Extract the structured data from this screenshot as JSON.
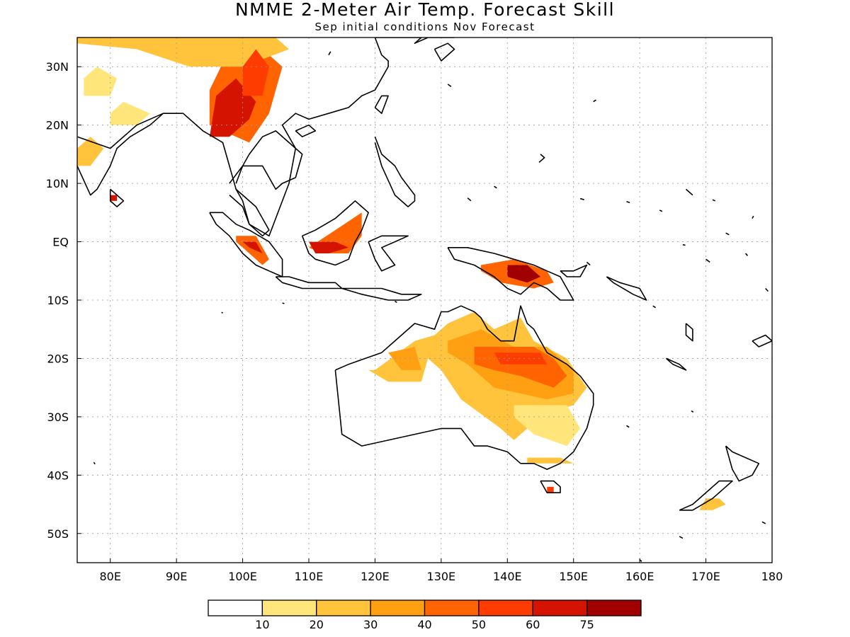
{
  "title": "NMME 2-Meter Air Temp. Forecast Skill",
  "subtitle": "Sep initial conditions  Nov Forecast",
  "lat_labels": [
    "30N",
    "20N",
    "10N",
    "EQ",
    "10S",
    "20S",
    "30S",
    "40S",
    "50S"
  ],
  "lon_labels": [
    "80E",
    "90E",
    "100E",
    "110E",
    "120E",
    "130E",
    "140E",
    "150E",
    "160E",
    "170E",
    "180"
  ],
  "map_extent": {
    "lon": [
      75,
      180
    ],
    "lat": [
      -55,
      35
    ]
  },
  "colorbar": {
    "bins": [
      {
        "color": "#ffffff"
      },
      {
        "color": "#ffe57a"
      },
      {
        "color": "#ffc33c"
      },
      {
        "color": "#ffa012"
      },
      {
        "color": "#ff6400"
      },
      {
        "color": "#ff3c00"
      },
      {
        "color": "#d41400"
      },
      {
        "color": "#a00000"
      }
    ],
    "labels": [
      "10",
      "20",
      "30",
      "40",
      "50",
      "60",
      "75"
    ]
  },
  "skill_regions": [
    {
      "name": "tibet-china",
      "lon": [
        95,
        101,
        104,
        106,
        101,
        98,
        95
      ],
      "lat": [
        20,
        17,
        22,
        30,
        35,
        33,
        26
      ],
      "level": 4
    },
    {
      "name": "china-west",
      "lon": [
        75,
        84,
        92,
        100,
        107,
        105,
        95,
        85,
        75
      ],
      "lat": [
        34,
        33,
        30,
        30,
        33,
        35,
        35,
        35,
        35
      ],
      "level": 2
    },
    {
      "name": "myanmar",
      "lon": [
        95,
        98,
        101,
        102,
        99,
        96
      ],
      "lat": [
        18,
        18,
        21,
        24,
        28,
        25
      ],
      "level": 6
    },
    {
      "name": "sichuan",
      "lon": [
        100,
        103,
        104,
        102,
        100
      ],
      "lat": [
        25,
        25,
        30,
        33,
        30
      ],
      "level": 5
    },
    {
      "name": "india-west",
      "lon": [
        75,
        77,
        79,
        77,
        75
      ],
      "lat": [
        13,
        13,
        16,
        18,
        16
      ],
      "level": 2
    },
    {
      "name": "india-nw",
      "lon": [
        76,
        80,
        81,
        78,
        76
      ],
      "lat": [
        25,
        25,
        28,
        30,
        28
      ],
      "level": 1
    },
    {
      "name": "india-c",
      "lon": [
        80,
        84,
        86,
        82,
        80
      ],
      "lat": [
        20,
        20,
        22,
        24,
        22
      ],
      "level": 1
    },
    {
      "name": "srilanka",
      "lon": [
        80,
        81,
        81,
        80
      ],
      "lat": [
        7,
        7,
        8,
        8
      ],
      "level": 6
    },
    {
      "name": "sumatra",
      "lon": [
        99,
        102,
        104,
        103,
        100,
        99
      ],
      "lat": [
        1,
        1,
        -3,
        -4,
        -1,
        0
      ],
      "level": 4
    },
    {
      "name": "sumatra-core",
      "lon": [
        100,
        102,
        103,
        101
      ],
      "lat": [
        0,
        0,
        -2,
        -1
      ],
      "level": 6
    },
    {
      "name": "borneo",
      "lon": [
        110,
        114,
        118,
        118,
        116,
        112,
        110
      ],
      "lat": [
        -1,
        2,
        5,
        1,
        -2,
        -2,
        -1
      ],
      "level": 4
    },
    {
      "name": "borneo-core",
      "lon": [
        110,
        114,
        116,
        113,
        111
      ],
      "lat": [
        0,
        0,
        -1,
        -2,
        -2
      ],
      "level": 6
    },
    {
      "name": "newguinea",
      "lon": [
        136,
        141,
        146,
        147,
        144,
        139,
        136
      ],
      "lat": [
        -4,
        -3,
        -5,
        -7,
        -8,
        -7,
        -5
      ],
      "level": 4
    },
    {
      "name": "newguinea-core",
      "lon": [
        140,
        143,
        145,
        143,
        140
      ],
      "lat": [
        -4,
        -4,
        -6,
        -7,
        -6
      ],
      "level": 7
    },
    {
      "name": "aus-west",
      "lon": [
        120,
        126,
        129,
        127,
        122,
        119
      ],
      "lat": [
        -22,
        -17,
        -16,
        -24,
        -24,
        -22
      ],
      "level": 2
    },
    {
      "name": "aus-west-core",
      "lon": [
        122,
        126,
        127,
        124
      ],
      "lat": [
        -19,
        -18,
        -22,
        -22
      ],
      "level": 3
    },
    {
      "name": "aus-north",
      "lon": [
        128,
        131,
        135,
        138,
        142,
        144,
        149,
        152,
        150,
        147,
        144,
        141,
        139,
        133,
        130,
        128
      ],
      "lat": [
        -17,
        -14,
        -12,
        -15,
        -13,
        -17,
        -20,
        -25,
        -28,
        -29,
        -31,
        -34,
        -32,
        -27,
        -22,
        -20
      ],
      "level": 2
    },
    {
      "name": "aus-core",
      "lon": [
        131,
        136,
        141,
        146,
        150,
        150,
        146,
        142,
        138,
        134,
        131
      ],
      "lat": [
        -17,
        -15,
        -18,
        -18,
        -22,
        -26,
        -27,
        -26,
        -25,
        -21,
        -19
      ],
      "level": 3
    },
    {
      "name": "aus-band",
      "lon": [
        135,
        140,
        144,
        147,
        149,
        147,
        142,
        138,
        135
      ],
      "lat": [
        -18,
        -18,
        -18,
        -20,
        -23,
        -25,
        -23,
        -22,
        -21
      ],
      "level": 4
    },
    {
      "name": "aus-hot",
      "lon": [
        138,
        142,
        145,
        146,
        143,
        139
      ],
      "lat": [
        -19,
        -19,
        -19,
        -21,
        -21,
        -21
      ],
      "level": 5
    },
    {
      "name": "aus-se",
      "lon": [
        141,
        146,
        149,
        151,
        149,
        144,
        141
      ],
      "lat": [
        -28,
        -28,
        -28,
        -32,
        -35,
        -33,
        -30
      ],
      "level": 1
    },
    {
      "name": "aus-south",
      "lon": [
        143,
        148,
        150,
        147,
        143
      ],
      "lat": [
        -37,
        -37,
        -38,
        -38,
        -38
      ],
      "level": 2
    },
    {
      "name": "tasmania",
      "lon": [
        146,
        147,
        147,
        146
      ],
      "lat": [
        -42,
        -42,
        -43,
        -43
      ],
      "level": 5
    },
    {
      "name": "nz",
      "lon": [
        170,
        172,
        173,
        171,
        169
      ],
      "lat": [
        -44,
        -44,
        -45,
        -46,
        -46
      ],
      "level": 2
    }
  ],
  "coastlines": [
    {
      "name": "asia-mainland",
      "lon": [
        75,
        80,
        84,
        88,
        91,
        94,
        97,
        98,
        99,
        100,
        101,
        104,
        107,
        108,
        106,
        108,
        110,
        113,
        116,
        118,
        120,
        122,
        122,
        121,
        120,
        122,
        125,
        127,
        126,
        128,
        130,
        131,
        132
      ],
      "lat": [
        18,
        16,
        20,
        22,
        22,
        19,
        17,
        13,
        9,
        7,
        3,
        1,
        10,
        16,
        20,
        22,
        21,
        22,
        23,
        25,
        26,
        30,
        31,
        32,
        35,
        35,
        35,
        35,
        34,
        35,
        35,
        35,
        35
      ]
    },
    {
      "name": "india-south",
      "lon": [
        72,
        73,
        75,
        77,
        78,
        80,
        81,
        83,
        86,
        88
      ],
      "lat": [
        21,
        17,
        13,
        8,
        9,
        13,
        16,
        18,
        20,
        22
      ]
    },
    {
      "name": "srilanka",
      "lon": [
        80,
        81,
        82,
        81,
        80,
        80
      ],
      "lat": [
        9,
        8,
        7,
        6,
        7,
        9
      ]
    },
    {
      "name": "indochina",
      "lon": [
        98,
        100,
        103,
        105,
        106,
        108,
        109,
        107,
        105,
        103,
        101,
        100,
        99
      ],
      "lat": [
        10,
        13,
        13,
        9,
        10,
        11,
        15,
        17,
        19,
        18,
        15,
        13,
        10
      ]
    },
    {
      "name": "malay-peninsula",
      "lon": [
        98,
        100,
        101,
        103,
        104,
        103,
        102,
        100,
        99
      ],
      "lat": [
        8,
        6,
        3,
        1,
        2,
        4,
        6,
        8,
        9
      ]
    },
    {
      "name": "sumatra",
      "lon": [
        95,
        97,
        99,
        101,
        104,
        106,
        106,
        104,
        102,
        100,
        98,
        96,
        95
      ],
      "lat": [
        5,
        5,
        3,
        2,
        0,
        -3,
        -6,
        -5,
        -4,
        -2,
        1,
        3,
        5
      ]
    },
    {
      "name": "java",
      "lon": [
        105,
        107,
        110,
        114,
        115,
        112,
        109,
        106,
        105
      ],
      "lat": [
        -6,
        -6,
        -7,
        -7,
        -8,
        -8,
        -8,
        -7,
        -6
      ]
    },
    {
      "name": "lesser-sunda",
      "lon": [
        115,
        118,
        121,
        124,
        127,
        125,
        122,
        118,
        115
      ],
      "lat": [
        -8,
        -8,
        -8,
        -9,
        -9,
        -10,
        -10,
        -9,
        -8
      ]
    },
    {
      "name": "borneo",
      "lon": [
        109,
        111,
        114,
        116,
        117,
        119,
        118,
        117,
        116,
        114,
        111,
        110,
        109
      ],
      "lat": [
        1,
        2,
        4,
        6,
        7,
        5,
        2,
        0,
        -3,
        -4,
        -3,
        -2,
        1
      ]
    },
    {
      "name": "sulawesi",
      "lon": [
        119,
        121,
        123,
        125,
        123,
        121,
        123,
        121,
        120,
        119
      ],
      "lat": [
        0,
        1,
        1,
        1,
        0,
        -1,
        -4,
        -5,
        -3,
        0
      ]
    },
    {
      "name": "philippines",
      "lon": [
        120,
        121,
        123,
        124,
        126,
        126,
        125,
        123,
        121,
        120
      ],
      "lat": [
        18,
        15,
        13,
        11,
        8,
        7,
        6,
        8,
        13,
        17
      ]
    },
    {
      "name": "taiwan",
      "lon": [
        120,
        121,
        122,
        121,
        120
      ],
      "lat": [
        23,
        25,
        25,
        22,
        23
      ]
    },
    {
      "name": "hainan",
      "lon": [
        108,
        110,
        111,
        109,
        108
      ],
      "lat": [
        19,
        20,
        19,
        18,
        19
      ]
    },
    {
      "name": "japan-kyushu",
      "lon": [
        129,
        131,
        132,
        130,
        129
      ],
      "lat": [
        33,
        34,
        33,
        31,
        33
      ]
    },
    {
      "name": "new-guinea",
      "lon": [
        131,
        134,
        138,
        141,
        144,
        146,
        148,
        150,
        148,
        146,
        144,
        142,
        140,
        138,
        135,
        132,
        131
      ],
      "lat": [
        -1,
        -1,
        -2,
        -3,
        -4,
        -5,
        -6,
        -10,
        -10,
        -8,
        -7,
        -9,
        -8,
        -6,
        -4,
        -3,
        -1
      ]
    },
    {
      "name": "australia",
      "lon": [
        114,
        116,
        121,
        124,
        126,
        129,
        130,
        131,
        133,
        135,
        136,
        137,
        139,
        141,
        142,
        143,
        144,
        146,
        149,
        151,
        153,
        153,
        152,
        150,
        148,
        146,
        144,
        142,
        140,
        137,
        135,
        133,
        130,
        126,
        122,
        118,
        115,
        114
      ],
      "lat": [
        -22,
        -21,
        -19,
        -16,
        -14,
        -15,
        -12,
        -12,
        -11,
        -12,
        -13,
        -15,
        -17,
        -17,
        -11,
        -14,
        -15,
        -19,
        -21,
        -23,
        -26,
        -28,
        -32,
        -36,
        -38,
        -39,
        -38,
        -38,
        -36,
        -35,
        -35,
        -32,
        -32,
        -33,
        -34,
        -35,
        -33,
        -22
      ]
    },
    {
      "name": "tasmania",
      "lon": [
        145,
        147,
        148,
        148,
        146,
        145
      ],
      "lat": [
        -41,
        -41,
        -42,
        -43,
        -43,
        -41
      ]
    },
    {
      "name": "nz-north",
      "lon": [
        173,
        174,
        176,
        178,
        177,
        175,
        174,
        173
      ],
      "lat": [
        -35,
        -36,
        -37,
        -38,
        -40,
        -41,
        -39,
        -35
      ]
    },
    {
      "name": "nz-south",
      "lon": [
        166,
        168,
        170,
        172,
        174,
        173,
        171,
        168,
        166
      ],
      "lat": [
        -46,
        -45,
        -43,
        -41,
        -41,
        -42,
        -44,
        -46,
        -46
      ]
    },
    {
      "name": "new-caledonia",
      "lon": [
        164,
        166,
        167,
        165,
        164
      ],
      "lat": [
        -20,
        -21,
        -22,
        -21,
        -20
      ]
    },
    {
      "name": "solomon",
      "lon": [
        155,
        157,
        160,
        161,
        159,
        156,
        155
      ],
      "lat": [
        -6,
        -7,
        -8,
        -10,
        -9,
        -7,
        -6
      ]
    },
    {
      "name": "new-britain",
      "lon": [
        148,
        150,
        152,
        151,
        149,
        148
      ],
      "lat": [
        -5,
        -5,
        -4,
        -6,
        -6,
        -5
      ]
    },
    {
      "name": "vanuatu",
      "lon": [
        167,
        168,
        168,
        167,
        167
      ],
      "lat": [
        -14,
        -15,
        -17,
        -16,
        -14
      ]
    },
    {
      "name": "fiji",
      "lon": [
        177,
        179,
        180,
        178,
        177
      ],
      "lat": [
        -17,
        -16,
        -17,
        -18,
        -17
      ]
    }
  ],
  "islands": [
    {
      "lon": [
        145,
        145.6,
        144.8
      ],
      "lat": [
        15,
        14.4,
        13.6
      ]
    },
    {
      "lon": [
        134,
        134.5
      ],
      "lat": [
        7.5,
        7
      ]
    },
    {
      "lon": [
        138,
        138.4
      ],
      "lat": [
        9.5,
        9.2
      ]
    },
    {
      "lon": [
        151,
        151.6
      ],
      "lat": [
        7.4,
        7.2
      ]
    },
    {
      "lon": [
        158,
        158.5
      ],
      "lat": [
        6.9,
        6.7
      ]
    },
    {
      "lon": [
        163,
        163.4
      ],
      "lat": [
        5.4,
        5.2
      ]
    },
    {
      "lon": [
        167,
        167.5,
        168
      ],
      "lat": [
        9,
        8.5,
        8
      ]
    },
    {
      "lon": [
        171,
        171.4
      ],
      "lat": [
        7.2,
        7
      ]
    },
    {
      "lon": [
        173,
        173.5
      ],
      "lat": [
        1.5,
        1.2
      ]
    },
    {
      "lon": [
        176,
        176.3
      ],
      "lat": [
        -2,
        -2.4
      ]
    },
    {
      "lon": [
        179,
        179.4
      ],
      "lat": [
        -8,
        -8.5
      ]
    },
    {
      "lon": [
        166.5,
        166.9
      ],
      "lat": [
        -0.5,
        -0.6
      ]
    },
    {
      "lon": [
        170,
        170.6
      ],
      "lat": [
        -3,
        -3.5
      ]
    },
    {
      "lon": [
        177,
        177.2
      ],
      "lat": [
        4,
        4.4
      ]
    },
    {
      "lon": [
        162,
        162.4
      ],
      "lat": [
        -11,
        -11.3
      ]
    },
    {
      "lon": [
        158,
        158.4
      ],
      "lat": [
        -31.5,
        -31.8
      ]
    },
    {
      "lon": [
        167.8,
        168.1
      ],
      "lat": [
        -29,
        -29.2
      ]
    },
    {
      "lon": [
        178.5,
        179
      ],
      "lat": [
        -48,
        -48.3
      ]
    },
    {
      "lon": [
        166,
        166.5
      ],
      "lat": [
        -50.5,
        -50.8
      ]
    },
    {
      "lon": [
        77.5,
        77.7
      ],
      "lat": [
        -37.8,
        -38.1
      ]
    },
    {
      "lon": [
        160,
        160.3
      ],
      "lat": [
        -54.5,
        -54.8
      ]
    },
    {
      "lon": [
        152,
        152.5
      ],
      "lat": [
        -3.5,
        -4
      ]
    },
    {
      "lon": [
        123,
        123.3
      ],
      "lat": [
        -10.2,
        -10.4
      ]
    },
    {
      "lon": [
        106,
        106.3
      ],
      "lat": [
        -10.5,
        -10.6
      ]
    },
    {
      "lon": [
        96.8,
        97
      ],
      "lat": [
        -12.1,
        -12.2
      ]
    },
    {
      "lon": [
        113,
        113.3
      ],
      "lat": [
        32,
        32.6
      ]
    },
    {
      "lon": [
        131,
        131.5
      ],
      "lat": [
        27,
        26.6
      ]
    },
    {
      "lon": [
        153,
        153.4
      ],
      "lat": [
        24,
        24.3
      ]
    }
  ]
}
